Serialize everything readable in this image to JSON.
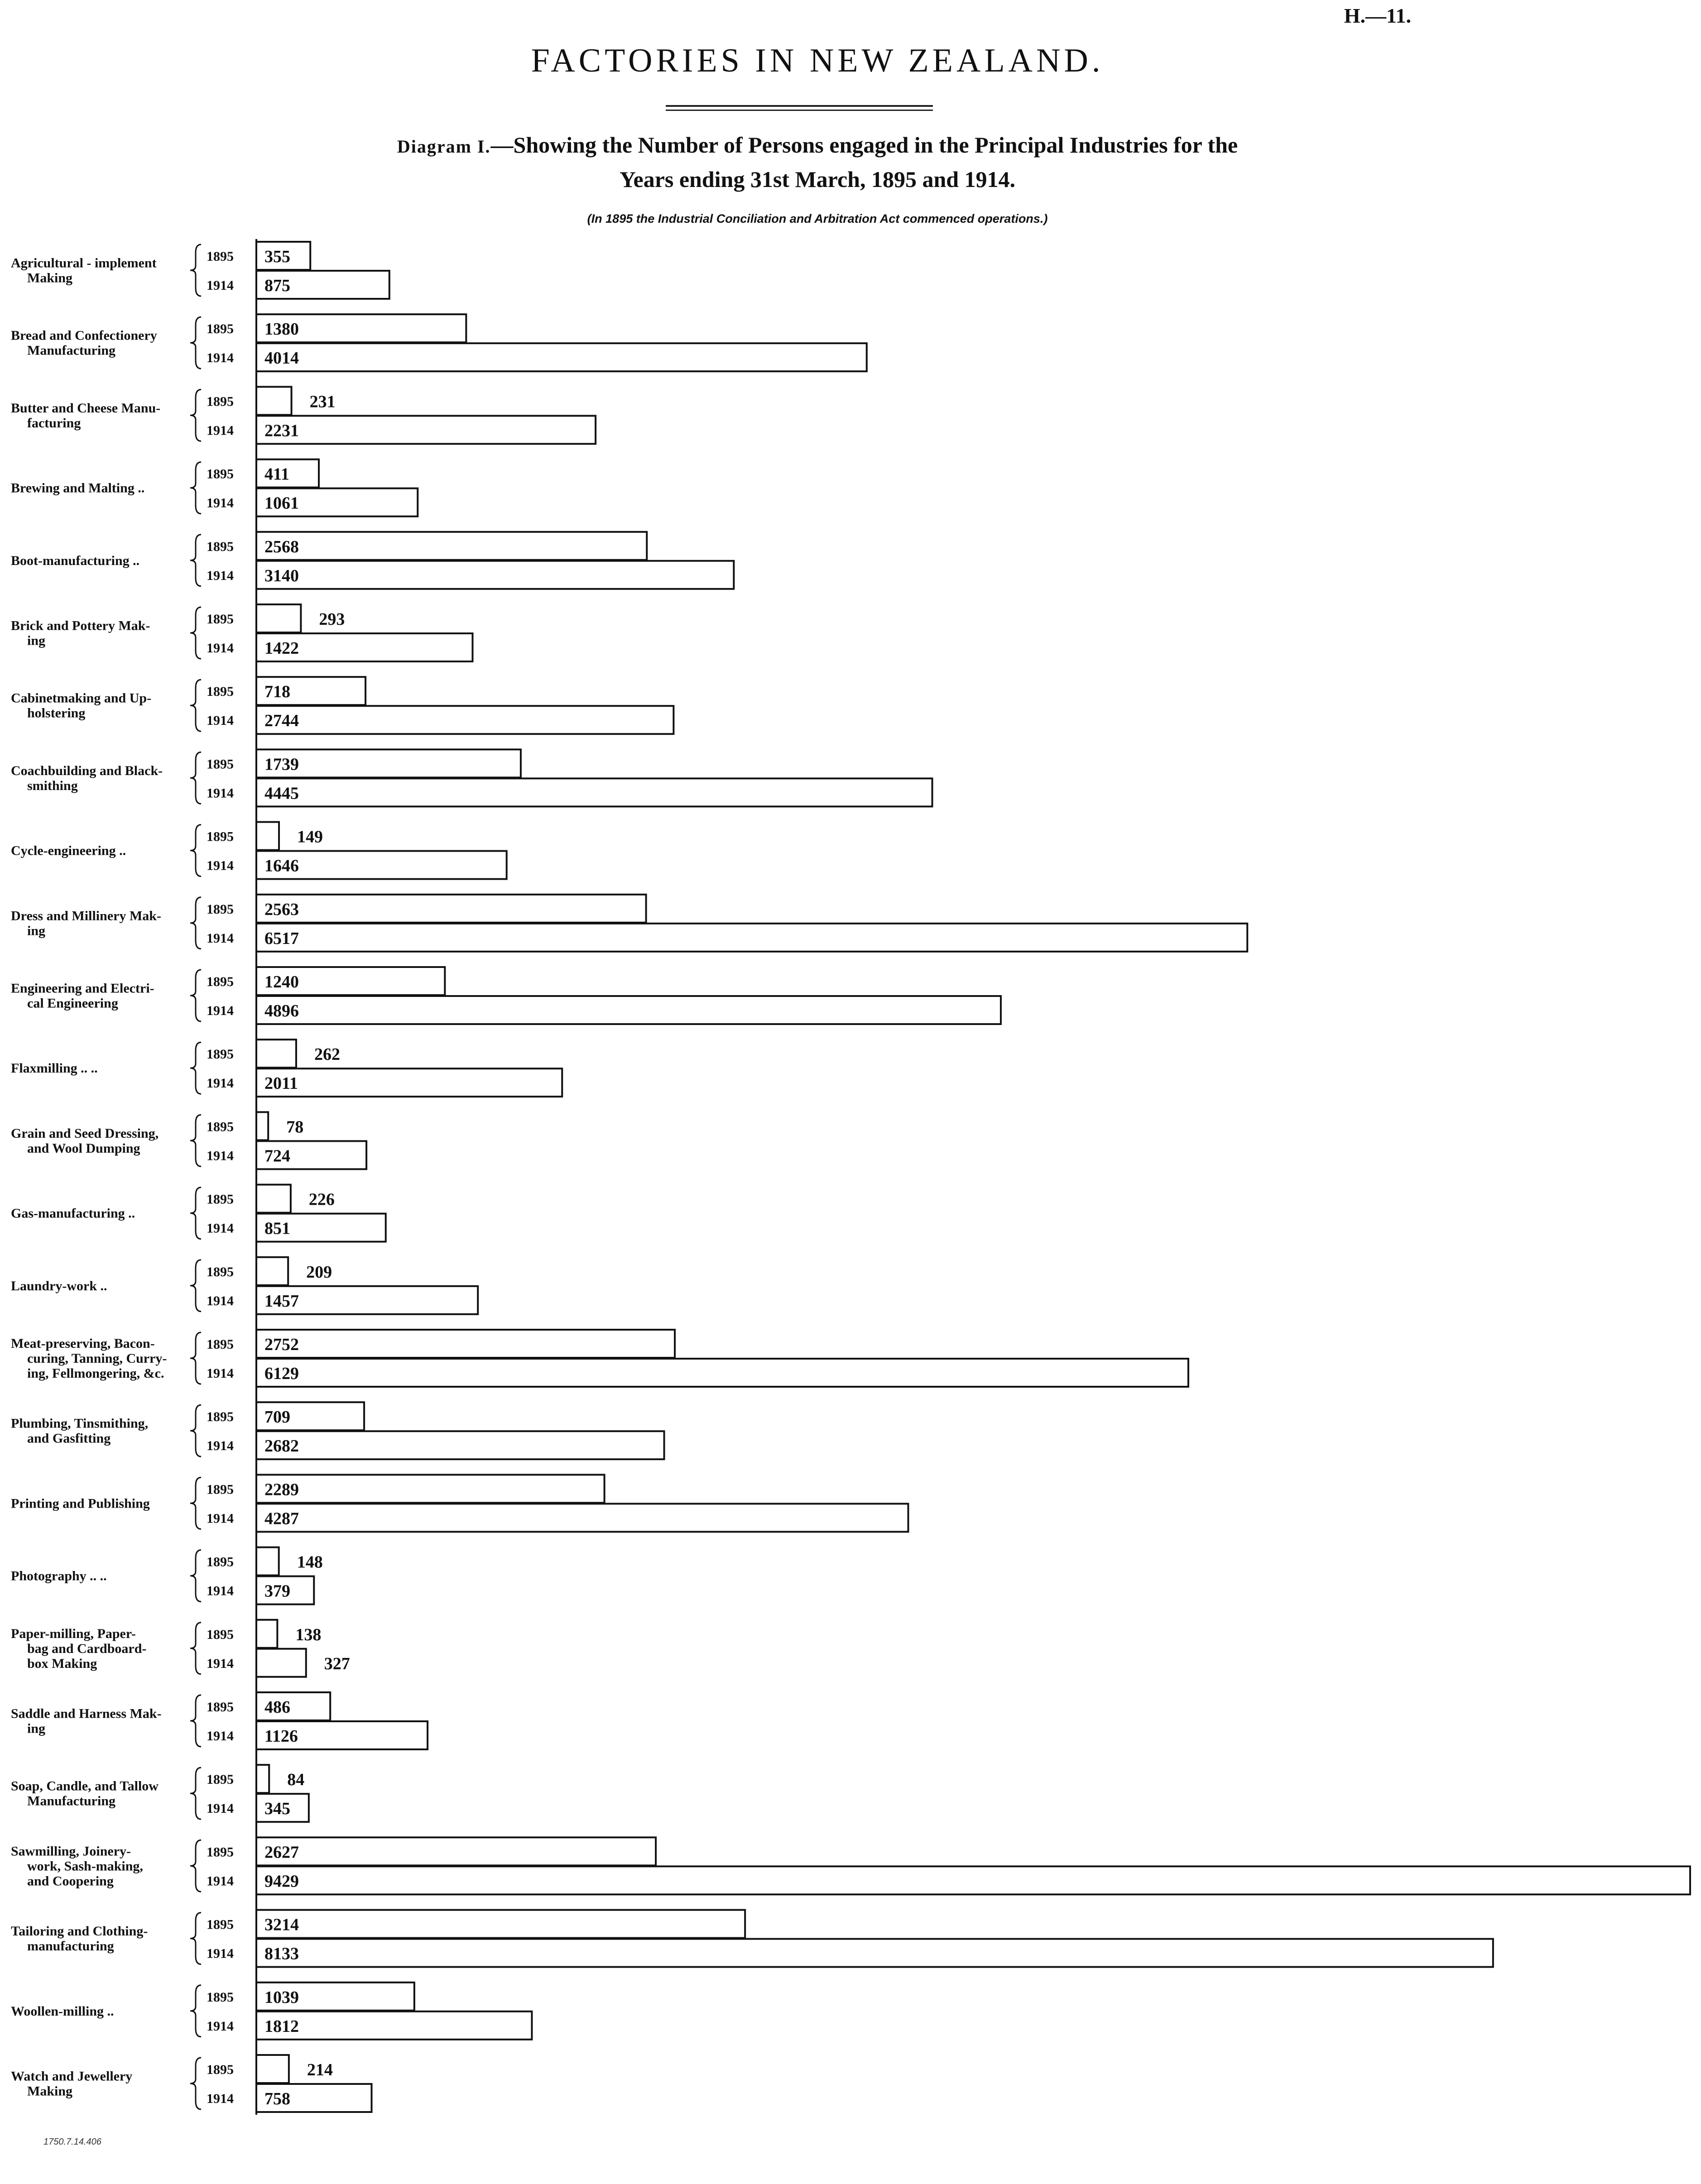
{
  "header": {
    "ref": "H.—11.",
    "title": "FACTORIES IN NEW ZEALAND.",
    "subtitle_caps": "Diagram I.",
    "subtitle_line1": "—Showing the Number of Persons engaged in the Principal Industries for the",
    "subtitle_line2": "Years ending 31st March, 1895 and 1914.",
    "note": "(In 1895 the Industrial Conciliation and Arbitration Act commenced operations.)"
  },
  "footer": {
    "printer_note": "1750.7.14.406"
  },
  "chart_data": {
    "type": "bar",
    "orientation": "horizontal",
    "title": "Showing the Number of Persons engaged in the Principal Industries for the Years ending 31st March, 1895 and 1914.",
    "year_labels": [
      "1895",
      "1914"
    ],
    "categories": [
      [
        "Agricultural - implement",
        "Making"
      ],
      [
        "Bread and Confectionery",
        "Manufacturing"
      ],
      [
        "Butter and Cheese Manu-",
        "facturing"
      ],
      [
        "Brewing and Malting  ..",
        ""
      ],
      [
        "Boot-manufacturing   ..",
        ""
      ],
      [
        "Brick and Pottery Mak-",
        "ing"
      ],
      [
        "Cabinetmaking and Up-",
        "holstering"
      ],
      [
        "Coachbuilding and Black-",
        "smithing"
      ],
      [
        "Cycle-engineering   ..",
        ""
      ],
      [
        "Dress and Millinery Mak-",
        "ing"
      ],
      [
        "Engineering and Electri-",
        "cal Engineering"
      ],
      [
        "Flaxmilling  ..   ..",
        ""
      ],
      [
        "Grain and Seed Dressing,",
        "and Wool Dumping"
      ],
      [
        "Gas-manufacturing   ..",
        ""
      ],
      [
        "Laundry-work   ..",
        ""
      ],
      [
        "Meat-preserving, Bacon-",
        "curing, Tanning, Curry-",
        "ing, Fellmongering, &c."
      ],
      [
        "Plumbing, Tinsmithing,",
        "and Gasfitting"
      ],
      [
        "Printing and Publishing",
        ""
      ],
      [
        "Photography  ..   ..",
        ""
      ],
      [
        "Paper-milling, Paper-",
        "bag and Cardboard-",
        "box Making"
      ],
      [
        "Saddle and Harness Mak-",
        "ing"
      ],
      [
        "Soap, Candle, and Tallow",
        "Manufacturing"
      ],
      [
        "Sawmilling, Joinery-",
        "work, Sash-making,",
        "and Coopering"
      ],
      [
        "Tailoring and Clothing-",
        "manufacturing"
      ],
      [
        "Woollen-milling   ..",
        ""
      ],
      [
        "Watch and Jewellery",
        "Making"
      ]
    ],
    "series": [
      {
        "name": "1895",
        "values": [
          355,
          1380,
          231,
          411,
          2568,
          293,
          718,
          1739,
          149,
          2563,
          1240,
          262,
          78,
          226,
          209,
          2752,
          709,
          2289,
          148,
          138,
          486,
          84,
          2627,
          3214,
          1039,
          214
        ]
      },
      {
        "name": "1914",
        "values": [
          875,
          4014,
          2231,
          1061,
          3140,
          1422,
          2744,
          4445,
          1646,
          6517,
          4896,
          2011,
          724,
          851,
          1457,
          6129,
          2682,
          4287,
          379,
          327,
          1126,
          345,
          9429,
          8133,
          1812,
          758
        ]
      }
    ],
    "xlim": [
      0,
      9429
    ],
    "grid": false,
    "legend": "none"
  }
}
